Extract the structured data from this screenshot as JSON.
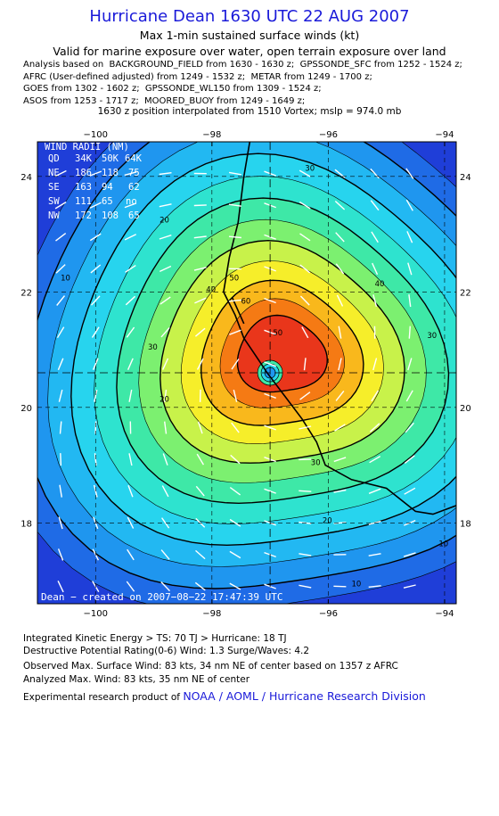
{
  "header": {
    "title": "Hurricane Dean 1630 UTC 22 AUG 2007",
    "subtitle": "Max 1-min sustained surface winds (kt)",
    "valid": "Valid for marine exposure over water, open terrain exposure over land",
    "analysis_lines": [
      "Analysis based on  BACKGROUND_FIELD from 1630 - 1630 z;  GPSSONDE_SFC from 1252 - 1524 z;",
      "AFRC (User-defined adjusted) from 1249 - 1532 z;  METAR from 1249 - 1700 z;",
      "GOES from 1302 - 1602 z;  GPSSONDE_WL150 from 1309 - 1524 z;",
      "ASOS from 1253 - 1717 z;  MOORED_BUOY from 1249 - 1649 z;"
    ],
    "position": "1630 z position interpolated from 1510 Vortex; mslp = 974.0 mb"
  },
  "map": {
    "x_ticks": [
      "−100",
      "−98",
      "−96",
      "−94"
    ],
    "y_ticks": [
      "24",
      "22",
      "20",
      "18"
    ],
    "lon_range": [
      -101,
      -93.8
    ],
    "lat_range": [
      16.6,
      24.6
    ],
    "center": {
      "lon": -97.0,
      "lat": 20.6
    },
    "max_wind_point": {
      "lon": -96.65,
      "lat": 21.15
    },
    "contour_labels": [
      "30",
      "20",
      "10",
      "10",
      "50",
      "60",
      "40",
      "30",
      "20",
      "30",
      "40",
      "50",
      "30",
      "20",
      "10",
      "20",
      "10"
    ],
    "wind_radii": {
      "title": "WIND RADII (NM)",
      "header": [
        "QD",
        "34K",
        "50K",
        "64K"
      ],
      "rows": [
        [
          "NE",
          "186",
          "118",
          "75"
        ],
        [
          "SE",
          "163",
          "94",
          "62"
        ],
        [
          "SW",
          "111",
          "65",
          "no"
        ],
        [
          "NW",
          "172",
          "108",
          "65"
        ]
      ]
    },
    "credit": "Dean − created on 2007−08−22 17:47:39 UTC",
    "colors": {
      "ocean_dark": "#1f3ed8",
      "levels": [
        "#1f3ed8",
        "#1f6be6",
        "#1f96ef",
        "#22b8f2",
        "#27d4ee",
        "#2ee3cf",
        "#3ee8a7",
        "#7cf070",
        "#c8f24a",
        "#f6ee2a",
        "#f9b81c",
        "#f57a14",
        "#e9361b"
      ]
    }
  },
  "footer": {
    "ike": "Integrated Kinetic Energy > TS: 70 TJ   > Hurricane: 18 TJ",
    "destructive": "Destructive Potential Rating(0-6)   Wind: 1.3 Surge/Waves: 4.2",
    "observed": "Observed Max. Surface Wind: 83 kts, 34 nm NE of center based on 1357 z AFRC",
    "analyzed": "Analyzed Max. Wind: 83 kts, 35 nm NE of center",
    "product_prefix": "Experimental research product of ",
    "product_link": "NOAA / AOML / Hurricane Research Division"
  }
}
